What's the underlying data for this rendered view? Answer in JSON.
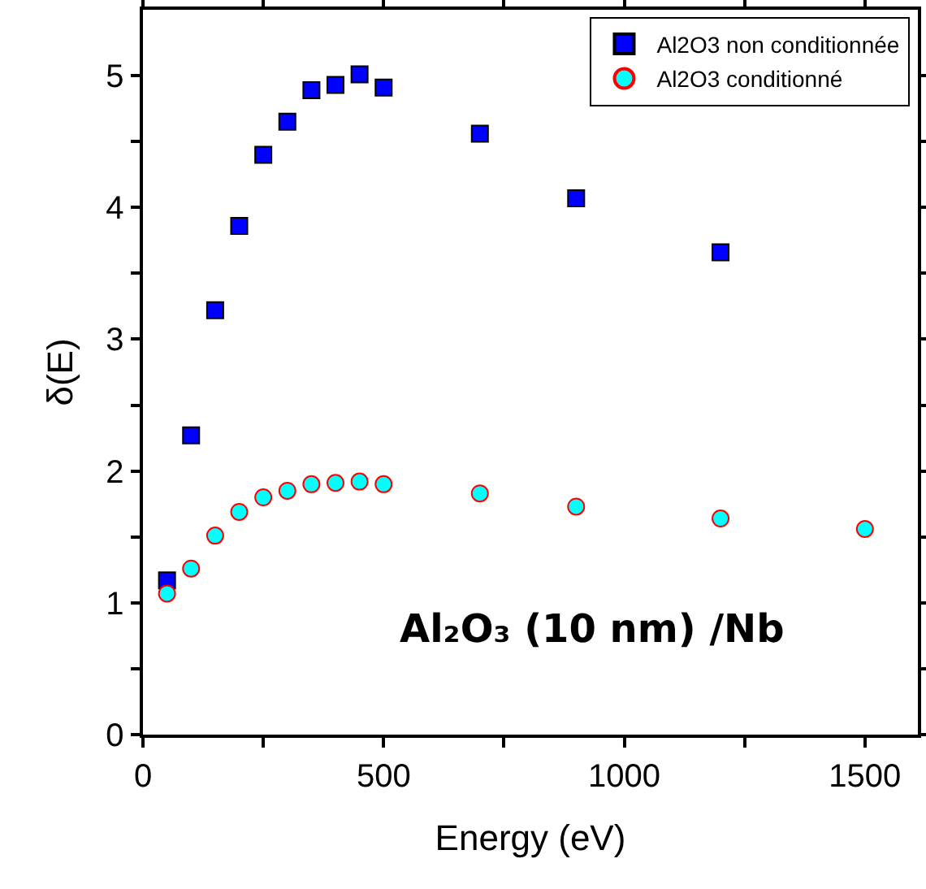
{
  "chart_data": {
    "type": "scatter",
    "xlabel": "Energy (eV)",
    "ylabel": "δ(E)",
    "annotations": [
      "Al₂O₃ (10 nm) /Nb"
    ],
    "series": [
      {
        "name": "Al2O3 non conditionnée",
        "color": "#0000ff",
        "marker": "square",
        "x": [
          50,
          100,
          150,
          200,
          250,
          300,
          350,
          400,
          450,
          500,
          700,
          900,
          1200
        ],
        "values": [
          1.17,
          2.27,
          3.22,
          3.86,
          4.4,
          4.65,
          4.89,
          4.93,
          5.01,
          4.91,
          4.56,
          4.07,
          3.66
        ]
      },
      {
        "name": "Al2O3 conditionné",
        "color": "#00ffff",
        "marker": "circle",
        "x": [
          50,
          100,
          150,
          200,
          250,
          300,
          350,
          400,
          450,
          500,
          700,
          900,
          1200,
          1500
        ],
        "values": [
          1.07,
          1.26,
          1.51,
          1.69,
          1.8,
          1.85,
          1.9,
          1.91,
          1.92,
          1.9,
          1.83,
          1.73,
          1.64,
          1.56
        ]
      }
    ],
    "xlim": [
      0,
      1610
    ],
    "xticks": [
      0,
      {
        "value": 250,
        "label": null
      },
      500,
      {
        "value": 750,
        "label": null
      },
      1000,
      {
        "value": 1250,
        "label": null
      },
      1500
    ],
    "ylim": [
      0,
      5.5
    ],
    "yticks": [
      0,
      {
        "value": 0.5,
        "label": null
      },
      1,
      {
        "value": 1.5,
        "label": null
      },
      2,
      {
        "value": 2.5,
        "label": null
      },
      3,
      {
        "value": 3.5,
        "label": null
      },
      4,
      {
        "value": 4.5,
        "label": null
      },
      5
    ],
    "grid": false,
    "legend": "top right"
  }
}
